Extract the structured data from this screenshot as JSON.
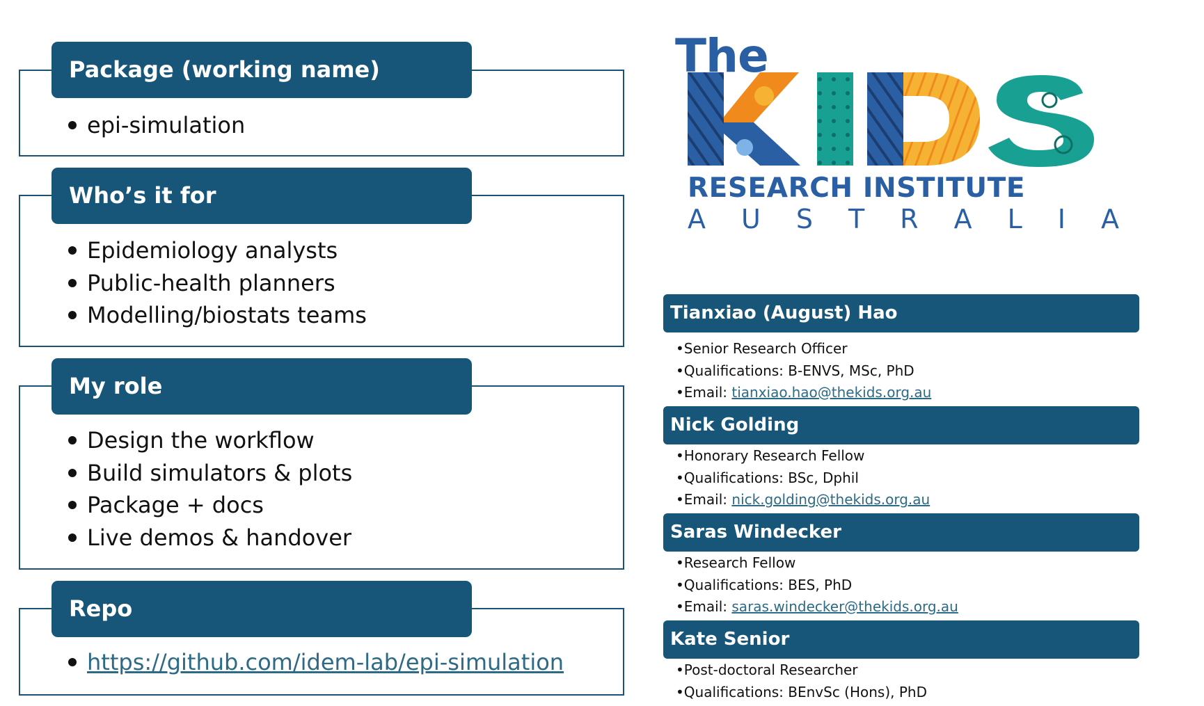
{
  "sections": [
    {
      "title": "Package (working name)",
      "items": [
        "epi-simulation"
      ]
    },
    {
      "title": "Who’s it for",
      "items": [
        "Epidemiology analysts",
        "Public-health planners",
        "Modelling/biostats teams"
      ]
    },
    {
      "title": "My role",
      "items": [
        "Design the workflow",
        "Build simulators & plots",
        "Package + docs",
        "Live demos & handover"
      ]
    },
    {
      "title": "Repo",
      "items": [
        "https://github.com/idem-lab/epi-simulation"
      ]
    }
  ],
  "logo": {
    "the": "The",
    "kids": [
      "K",
      "I",
      "D",
      "S"
    ],
    "line1": "RESEARCH INSTITUTE",
    "line2": [
      "A",
      "U",
      "S",
      "T",
      "R",
      "A",
      "L",
      "I",
      "A"
    ]
  },
  "people": [
    {
      "name": "Tianxiao (August) Hao",
      "role": "•Senior Research Officer",
      "quals": "•Qualifications: B-ENVS, MSc, PhD",
      "email_label": "•Email: ",
      "email": "tianxiao.hao@thekids.org.au"
    },
    {
      "name": "Nick Golding",
      "role": "•Honorary Research Fellow",
      "quals": "•Qualifications: BSc, Dphil",
      "email_label": "•Email: ",
      "email": "nick.golding@thekids.org.au"
    },
    {
      "name": "Saras Windecker",
      "role": "•Research Fellow",
      "quals": "•Qualifications: BES, PhD",
      "email_label": "•Email: ",
      "email": "saras.windecker@thekids.org.au"
    },
    {
      "name": "Kate Senior",
      "role": "•Post-doctoral Researcher",
      "quals": "•Qualifications: BEnvSc (Hons), PhD"
    }
  ],
  "colors": {
    "header_bg": "#175678",
    "box_border": "#1a5276",
    "link": "#2d6a86",
    "logo_blue": "#2a5fa4",
    "logo_orange": "#f08a1c",
    "logo_teal": "#18a192",
    "logo_yellow": "#f5b233"
  }
}
